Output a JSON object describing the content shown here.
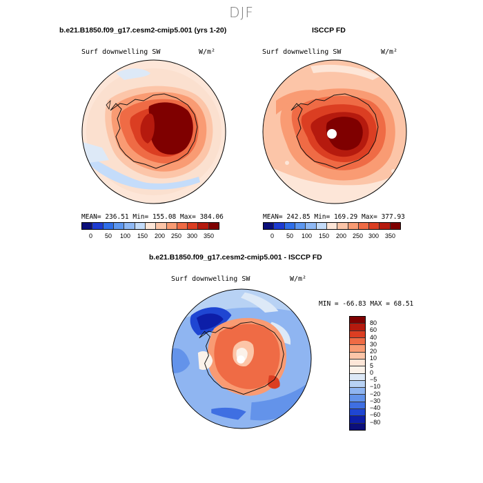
{
  "figure": {
    "season": "DJF"
  },
  "panel_model": {
    "title": "b.e21.B1850.f09_g17.cesm2-cmip5.001 (yrs 1-20)",
    "variable": "Surf downwelling SW",
    "units": "W/m²",
    "stats": "MEAN= 236.51  Min= 155.08  Max= 384.06",
    "colorbar_ticks": [
      "0",
      "50",
      "100",
      "150",
      "200",
      "250",
      "300",
      "350"
    ]
  },
  "panel_obs": {
    "title": "ISCCP FD",
    "variable": "Surf downwelling SW",
    "units": "W/m²",
    "stats": "MEAN= 242.85  Min= 169.29  Max= 377.93",
    "colorbar_ticks": [
      "0",
      "50",
      "100",
      "150",
      "200",
      "250",
      "300",
      "350"
    ]
  },
  "panel_diff": {
    "title": "b.e21.B1850.f09_g17.cesm2-cmip5.001 - ISCCP FD",
    "variable": "Surf downwelling SW",
    "units": "W/m²",
    "stats": "MIN = -66.83 MAX =  68.51",
    "colorbar_ticks": [
      "80",
      "60",
      "40",
      "30",
      "20",
      "10",
      "5",
      "0",
      "−5",
      "−10",
      "−20",
      "−30",
      "−40",
      "−60",
      "−80"
    ]
  },
  "colors": {
    "abs_scale": [
      "#0b0f7a",
      "#1d3bd1",
      "#2f6ee8",
      "#5d97f0",
      "#8fb9f5",
      "#c4dcfa",
      "#fde6d8",
      "#fcc5a8",
      "#f99b73",
      "#ef6b45",
      "#db3e22",
      "#b51a0e",
      "#7f0000"
    ],
    "diff_scale": [
      "#7f0000",
      "#b51a0e",
      "#db3e22",
      "#ef6b45",
      "#f99b73",
      "#fcc5a8",
      "#fde6d8",
      "#fbf2ea",
      "#dde9f7",
      "#b8d2f4",
      "#8fb5f1",
      "#6393ea",
      "#3f6fe2",
      "#1f46d2",
      "#0d1ea8",
      "#0b0f7a"
    ]
  }
}
